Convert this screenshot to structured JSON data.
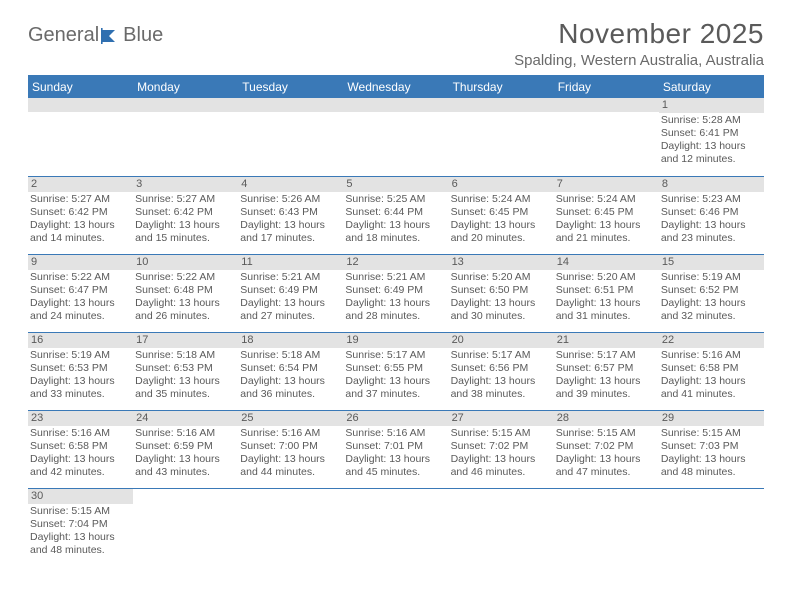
{
  "logo": {
    "text1": "General",
    "text2": "Blue",
    "color_text": "#6a6a6a",
    "color_icon": "#2f6fb0"
  },
  "title": "November 2025",
  "location": "Spalding, Western Australia, Australia",
  "colors": {
    "header_bg": "#3a79b7",
    "header_text": "#ffffff",
    "rule": "#3a79b7",
    "daybar": "#e3e3e3",
    "text": "#5a5a5a"
  },
  "weekdays": [
    "Sunday",
    "Monday",
    "Tuesday",
    "Wednesday",
    "Thursday",
    "Friday",
    "Saturday"
  ],
  "weeks": [
    [
      null,
      null,
      null,
      null,
      null,
      null,
      {
        "n": "1",
        "sr": "Sunrise: 5:28 AM",
        "ss": "Sunset: 6:41 PM",
        "dl1": "Daylight: 13 hours",
        "dl2": "and 12 minutes."
      }
    ],
    [
      {
        "n": "2",
        "sr": "Sunrise: 5:27 AM",
        "ss": "Sunset: 6:42 PM",
        "dl1": "Daylight: 13 hours",
        "dl2": "and 14 minutes."
      },
      {
        "n": "3",
        "sr": "Sunrise: 5:27 AM",
        "ss": "Sunset: 6:42 PM",
        "dl1": "Daylight: 13 hours",
        "dl2": "and 15 minutes."
      },
      {
        "n": "4",
        "sr": "Sunrise: 5:26 AM",
        "ss": "Sunset: 6:43 PM",
        "dl1": "Daylight: 13 hours",
        "dl2": "and 17 minutes."
      },
      {
        "n": "5",
        "sr": "Sunrise: 5:25 AM",
        "ss": "Sunset: 6:44 PM",
        "dl1": "Daylight: 13 hours",
        "dl2": "and 18 minutes."
      },
      {
        "n": "6",
        "sr": "Sunrise: 5:24 AM",
        "ss": "Sunset: 6:45 PM",
        "dl1": "Daylight: 13 hours",
        "dl2": "and 20 minutes."
      },
      {
        "n": "7",
        "sr": "Sunrise: 5:24 AM",
        "ss": "Sunset: 6:45 PM",
        "dl1": "Daylight: 13 hours",
        "dl2": "and 21 minutes."
      },
      {
        "n": "8",
        "sr": "Sunrise: 5:23 AM",
        "ss": "Sunset: 6:46 PM",
        "dl1": "Daylight: 13 hours",
        "dl2": "and 23 minutes."
      }
    ],
    [
      {
        "n": "9",
        "sr": "Sunrise: 5:22 AM",
        "ss": "Sunset: 6:47 PM",
        "dl1": "Daylight: 13 hours",
        "dl2": "and 24 minutes."
      },
      {
        "n": "10",
        "sr": "Sunrise: 5:22 AM",
        "ss": "Sunset: 6:48 PM",
        "dl1": "Daylight: 13 hours",
        "dl2": "and 26 minutes."
      },
      {
        "n": "11",
        "sr": "Sunrise: 5:21 AM",
        "ss": "Sunset: 6:49 PM",
        "dl1": "Daylight: 13 hours",
        "dl2": "and 27 minutes."
      },
      {
        "n": "12",
        "sr": "Sunrise: 5:21 AM",
        "ss": "Sunset: 6:49 PM",
        "dl1": "Daylight: 13 hours",
        "dl2": "and 28 minutes."
      },
      {
        "n": "13",
        "sr": "Sunrise: 5:20 AM",
        "ss": "Sunset: 6:50 PM",
        "dl1": "Daylight: 13 hours",
        "dl2": "and 30 minutes."
      },
      {
        "n": "14",
        "sr": "Sunrise: 5:20 AM",
        "ss": "Sunset: 6:51 PM",
        "dl1": "Daylight: 13 hours",
        "dl2": "and 31 minutes."
      },
      {
        "n": "15",
        "sr": "Sunrise: 5:19 AM",
        "ss": "Sunset: 6:52 PM",
        "dl1": "Daylight: 13 hours",
        "dl2": "and 32 minutes."
      }
    ],
    [
      {
        "n": "16",
        "sr": "Sunrise: 5:19 AM",
        "ss": "Sunset: 6:53 PM",
        "dl1": "Daylight: 13 hours",
        "dl2": "and 33 minutes."
      },
      {
        "n": "17",
        "sr": "Sunrise: 5:18 AM",
        "ss": "Sunset: 6:53 PM",
        "dl1": "Daylight: 13 hours",
        "dl2": "and 35 minutes."
      },
      {
        "n": "18",
        "sr": "Sunrise: 5:18 AM",
        "ss": "Sunset: 6:54 PM",
        "dl1": "Daylight: 13 hours",
        "dl2": "and 36 minutes."
      },
      {
        "n": "19",
        "sr": "Sunrise: 5:17 AM",
        "ss": "Sunset: 6:55 PM",
        "dl1": "Daylight: 13 hours",
        "dl2": "and 37 minutes."
      },
      {
        "n": "20",
        "sr": "Sunrise: 5:17 AM",
        "ss": "Sunset: 6:56 PM",
        "dl1": "Daylight: 13 hours",
        "dl2": "and 38 minutes."
      },
      {
        "n": "21",
        "sr": "Sunrise: 5:17 AM",
        "ss": "Sunset: 6:57 PM",
        "dl1": "Daylight: 13 hours",
        "dl2": "and 39 minutes."
      },
      {
        "n": "22",
        "sr": "Sunrise: 5:16 AM",
        "ss": "Sunset: 6:58 PM",
        "dl1": "Daylight: 13 hours",
        "dl2": "and 41 minutes."
      }
    ],
    [
      {
        "n": "23",
        "sr": "Sunrise: 5:16 AM",
        "ss": "Sunset: 6:58 PM",
        "dl1": "Daylight: 13 hours",
        "dl2": "and 42 minutes."
      },
      {
        "n": "24",
        "sr": "Sunrise: 5:16 AM",
        "ss": "Sunset: 6:59 PM",
        "dl1": "Daylight: 13 hours",
        "dl2": "and 43 minutes."
      },
      {
        "n": "25",
        "sr": "Sunrise: 5:16 AM",
        "ss": "Sunset: 7:00 PM",
        "dl1": "Daylight: 13 hours",
        "dl2": "and 44 minutes."
      },
      {
        "n": "26",
        "sr": "Sunrise: 5:16 AM",
        "ss": "Sunset: 7:01 PM",
        "dl1": "Daylight: 13 hours",
        "dl2": "and 45 minutes."
      },
      {
        "n": "27",
        "sr": "Sunrise: 5:15 AM",
        "ss": "Sunset: 7:02 PM",
        "dl1": "Daylight: 13 hours",
        "dl2": "and 46 minutes."
      },
      {
        "n": "28",
        "sr": "Sunrise: 5:15 AM",
        "ss": "Sunset: 7:02 PM",
        "dl1": "Daylight: 13 hours",
        "dl2": "and 47 minutes."
      },
      {
        "n": "29",
        "sr": "Sunrise: 5:15 AM",
        "ss": "Sunset: 7:03 PM",
        "dl1": "Daylight: 13 hours",
        "dl2": "and 48 minutes."
      }
    ],
    [
      {
        "n": "30",
        "sr": "Sunrise: 5:15 AM",
        "ss": "Sunset: 7:04 PM",
        "dl1": "Daylight: 13 hours",
        "dl2": "and 48 minutes."
      },
      null,
      null,
      null,
      null,
      null,
      null
    ]
  ]
}
